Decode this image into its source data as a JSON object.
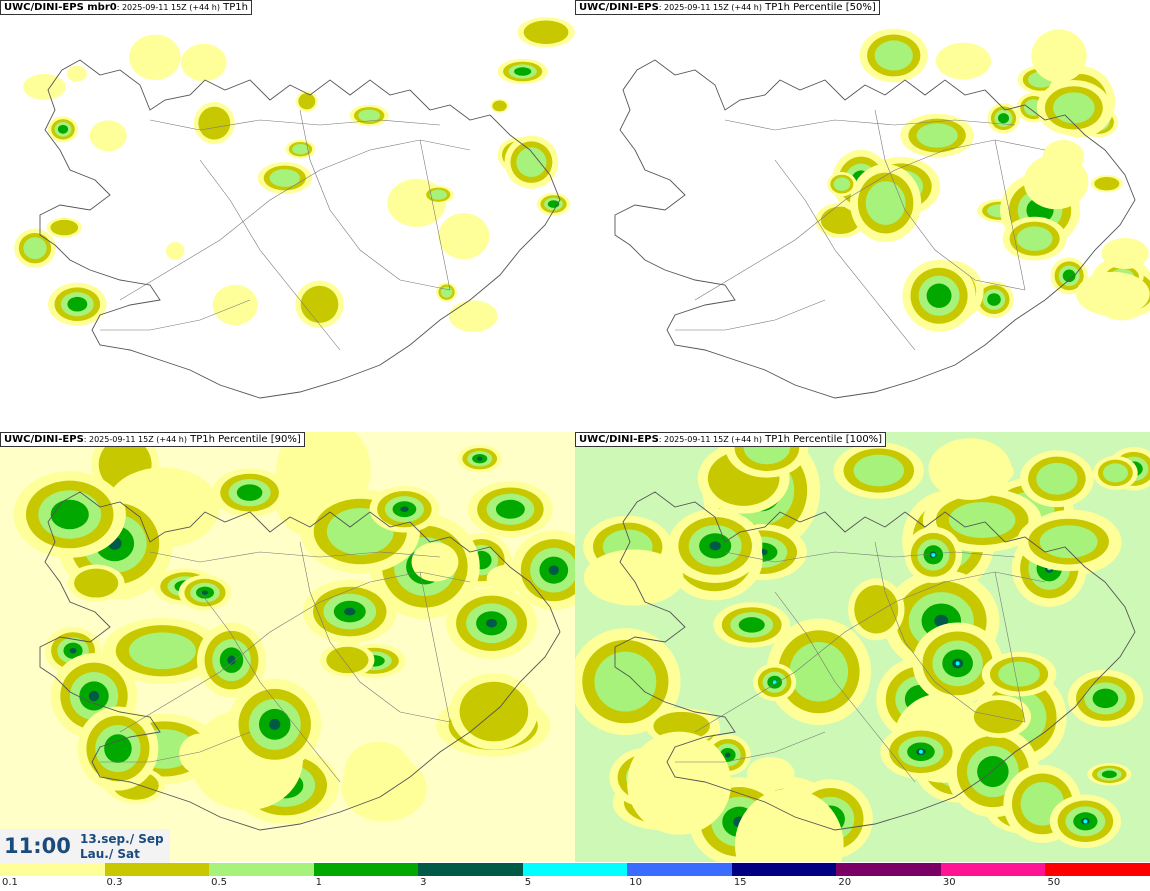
{
  "panels": [
    {
      "source": "UWC/DINI-EPS",
      "suffix": " mbr0",
      "run": ": 2025-09-11 15Z (+44 h)",
      "variable": " TP1h",
      "coverage": "low"
    },
    {
      "source": "UWC/DINI-EPS",
      "suffix": "",
      "run": ": 2025-09-11 15Z (+44 h)",
      "variable": " TP1h Percentile [50%]",
      "coverage": "medium"
    },
    {
      "source": "UWC/DINI-EPS",
      "suffix": "",
      "run": ": 2025-09-11 15Z (+44 h)",
      "variable": " TP1h Percentile [90%]",
      "coverage": "high"
    },
    {
      "source": "UWC/DINI-EPS",
      "suffix": "",
      "run": ": 2025-09-11 15Z (+44 h)",
      "variable": " TP1h Percentile [100%]",
      "coverage": "max"
    }
  ],
  "valid_time": {
    "time": "11:00",
    "date_line1": "13.sep./ Sep",
    "date_line2": "Lau./ Sat"
  },
  "legend": {
    "colors": [
      "#ffff99",
      "#c8c800",
      "#a6f27a",
      "#00a800",
      "#005a46",
      "#00ffff",
      "#3a6cff",
      "#000080",
      "#7a0066",
      "#ff1493",
      "#ff0000"
    ],
    "labels": [
      "0.1",
      "0.3",
      "0.5",
      "1",
      "3",
      "5",
      "10",
      "15",
      "20",
      "30",
      "50"
    ]
  }
}
